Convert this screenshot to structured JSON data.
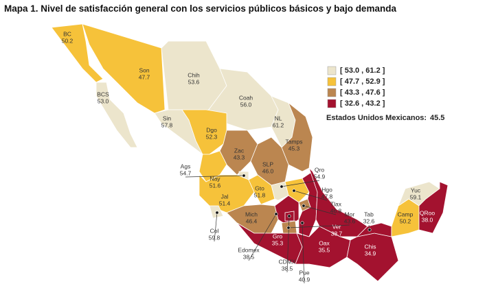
{
  "title": "Mapa 1. Nivel de satisfacción general con los servicios públicos básicos y bajo demanda",
  "legend": [
    {
      "label": "[ 53.0 , 61.2 ]",
      "color": "#ece5cc"
    },
    {
      "label": "[ 47.7 , 52.9 ]",
      "color": "#f6c23a"
    },
    {
      "label": "[ 43.3 , 47.6 ]",
      "color": "#bb8650"
    },
    {
      "label": "[ 32.6 , 43.2 ]",
      "color": "#a3122f"
    }
  ],
  "national": {
    "label": "Estados Unidos Mexicanos:",
    "value": "45.5"
  },
  "states": [
    {
      "name": "BC",
      "value": "50.2",
      "color": "#f6c23a"
    },
    {
      "name": "BCS",
      "value": "53.0",
      "color": "#ece5cc"
    },
    {
      "name": "Son",
      "value": "47.7",
      "color": "#f6c23a"
    },
    {
      "name": "Chih",
      "value": "53.6",
      "color": "#ece5cc"
    },
    {
      "name": "Coah",
      "value": "56.0",
      "color": "#ece5cc"
    },
    {
      "name": "NL",
      "value": "61.2",
      "color": "#ece5cc"
    },
    {
      "name": "Tamps",
      "value": "45.3",
      "color": "#bb8650"
    },
    {
      "name": "Sin",
      "value": "57.8",
      "color": "#ece5cc"
    },
    {
      "name": "Dgo",
      "value": "52.3",
      "color": "#f6c23a"
    },
    {
      "name": "Zac",
      "value": "43.3",
      "color": "#bb8650"
    },
    {
      "name": "SLP",
      "value": "46.0",
      "color": "#bb8650"
    },
    {
      "name": "Nay",
      "value": "51.6",
      "color": "#f6c23a"
    },
    {
      "name": "Ags",
      "value": "54.7",
      "color": "#ece5cc"
    },
    {
      "name": "Jal",
      "value": "51.4",
      "color": "#f6c23a"
    },
    {
      "name": "Gto",
      "value": "51.8",
      "color": "#f6c23a"
    },
    {
      "name": "Qro",
      "value": "54.9",
      "color": "#ece5cc"
    },
    {
      "name": "Hgo",
      "value": "47.8",
      "color": "#f6c23a"
    },
    {
      "name": "Col",
      "value": "59.8",
      "color": "#ece5cc"
    },
    {
      "name": "Mich",
      "value": "46.4",
      "color": "#bb8650"
    },
    {
      "name": "Edomex",
      "value": "38.5",
      "color": "#a3122f"
    },
    {
      "name": "Pue",
      "value": "40.9",
      "color": "#a3122f"
    },
    {
      "name": "Tlax",
      "value": "46.8",
      "color": "#bb8650"
    },
    {
      "name": "Ver",
      "value": "38.7",
      "color": "#a3122f"
    },
    {
      "name": "Gro",
      "value": "35.3",
      "color": "#a3122f"
    },
    {
      "name": "Oax",
      "value": "35.5",
      "color": "#a3122f"
    },
    {
      "name": "Chis",
      "value": "34.9",
      "color": "#a3122f"
    },
    {
      "name": "Tab",
      "value": "32.6",
      "color": "#a3122f"
    },
    {
      "name": "Camp",
      "value": "50.2",
      "color": "#f6c23a"
    },
    {
      "name": "Yuc",
      "value": "59.1",
      "color": "#ece5cc"
    },
    {
      "name": "QRoo",
      "value": "38.0",
      "color": "#a3122f"
    },
    {
      "name": "CDMX",
      "value": "38.5",
      "color": "#a3122f"
    },
    {
      "name": "Mor",
      "value": "43.6",
      "color": "#bb8650"
    }
  ]
}
